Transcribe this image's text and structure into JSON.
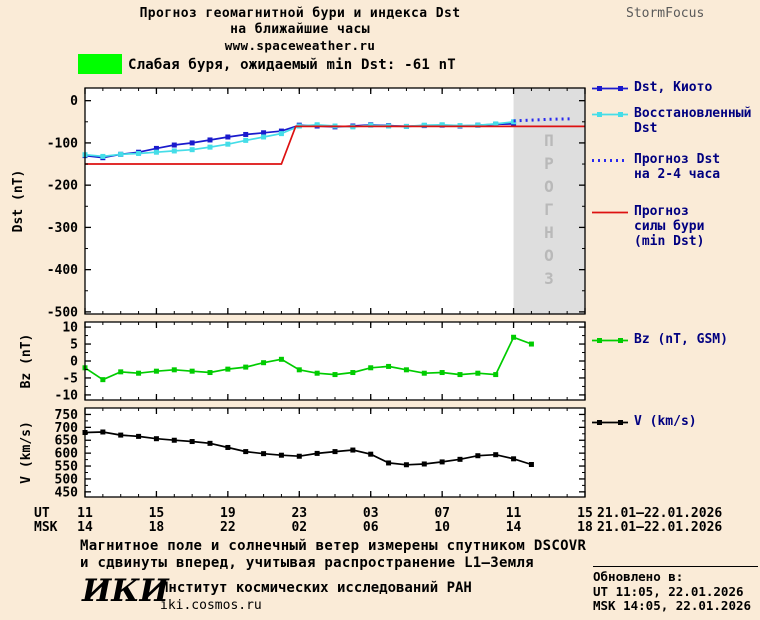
{
  "header": {
    "title_line1": "Прогноз геомагнитной бури и индекса Dst",
    "title_line2": "на ближайшие часы",
    "website": "www.spaceweather.ru",
    "brand": "StormFocus"
  },
  "alert": {
    "label": "Слабая буря, ожидаемый min Dst: -61 nT",
    "color": "#00ff00"
  },
  "colors": {
    "background": "#faebd7",
    "forecast_region": "#dedede",
    "watermark": "#b9b9b9",
    "axis": "#000000",
    "legend_text": "#000080"
  },
  "xaxis": {
    "ut_label": "UT",
    "msk_label": "MSK",
    "ut_ticks": [
      "11",
      "15",
      "19",
      "23",
      "03",
      "07",
      "11",
      "15"
    ],
    "msk_ticks": [
      "14",
      "18",
      "22",
      "02",
      "06",
      "10",
      "14",
      "18"
    ],
    "ut_date": "21.01—22.01.2026",
    "msk_date": "21.01—22.01.2026"
  },
  "legend_main": [
    {
      "label": "Dst, Киото"
    },
    {
      "label": "Восстановленный\nDst"
    },
    {
      "label": "Прогноз Dst\nна 2-4 часа"
    },
    {
      "label": "Прогноз\nсилы бури\n(min Dst)"
    }
  ],
  "legend_bz": {
    "label": "Bz (nT, GSM)"
  },
  "legend_v": {
    "label": "V (km/s)"
  },
  "note": {
    "line1": "Магнитное поле и солнечный ветер измерены спутником DSCOVR",
    "line2": "и сдвинуты вперед, учитывая распространение L1—Земля"
  },
  "footer": {
    "logo": "ИКИ",
    "institute": "Институт космических исследований РАН",
    "site": "iki.cosmos.ru"
  },
  "updated": {
    "heading": "Обновлено в:",
    "ut": "UT  11:05, 22.01.2026",
    "msk": "MSK 14:05, 22.01.2026"
  },
  "chart_data": [
    {
      "type": "line",
      "title": "Прогноз геомагнитной бури и индекса Dst",
      "ylabel": "Dst (nT)",
      "ylim": [
        30,
        -505
      ],
      "yticks": [
        0,
        -100,
        -200,
        -300,
        -400,
        -500
      ],
      "xlim": [
        0,
        28
      ],
      "xticks_hours": [
        0,
        4,
        8,
        12,
        16,
        20,
        24,
        28
      ],
      "forecast_region_hours": [
        24,
        28
      ],
      "watermark": "ПРОГНОЗ",
      "series": [
        {
          "name": "Dst, Киото",
          "color": "#1a1acd",
          "marker": "square",
          "x": [
            0,
            1,
            2,
            3,
            4,
            5,
            6,
            7,
            8,
            9,
            10,
            11,
            12,
            13,
            14,
            15,
            16,
            17,
            18,
            19,
            20,
            21,
            22,
            23,
            24
          ],
          "values": [
            -130,
            -135,
            -127,
            -122,
            -113,
            -105,
            -100,
            -93,
            -86,
            -80,
            -76,
            -72,
            -58,
            -60,
            -62,
            -60,
            -57,
            -59,
            -61,
            -59,
            -58,
            -60,
            -58,
            -56,
            -55
          ]
        },
        {
          "name": "Восстановленный Dst",
          "color": "#45dde8",
          "marker": "square",
          "x": [
            0,
            1,
            2,
            3,
            4,
            5,
            6,
            7,
            8,
            9,
            10,
            11,
            12,
            13,
            14,
            15,
            16,
            17,
            18,
            19,
            20,
            21,
            22,
            23,
            24
          ],
          "values": [
            -128,
            -132,
            -127,
            -125,
            -122,
            -119,
            -116,
            -110,
            -103,
            -94,
            -86,
            -78,
            -60,
            -57,
            -60,
            -62,
            -58,
            -60,
            -61,
            -58,
            -57,
            -59,
            -58,
            -55,
            -50
          ]
        },
        {
          "name": "Прогноз Dst на 2-4 часа",
          "color": "#2a2aee",
          "style": "dotted",
          "marker": "none",
          "x": [
            24,
            25,
            26,
            27.3
          ],
          "values": [
            -48,
            -46,
            -44,
            -43
          ]
        },
        {
          "name": "Прогноз силы бури (min Dst)",
          "color": "#dd1111",
          "marker": "none",
          "x": [
            0,
            11,
            11.8,
            28
          ],
          "values": [
            -150,
            -150,
            -61,
            -61
          ]
        }
      ]
    },
    {
      "type": "line",
      "title": "Bz",
      "ylabel": "Bz (nT)",
      "ylim": [
        11.5,
        -11.5
      ],
      "yticks": [
        10,
        5,
        0,
        -5,
        -10
      ],
      "xlim": [
        0,
        28
      ],
      "series": [
        {
          "name": "Bz (nT, GSM)",
          "color": "#00cc00",
          "marker": "square",
          "x": [
            0,
            1,
            2,
            3,
            4,
            5,
            6,
            7,
            8,
            9,
            10,
            11,
            12,
            13,
            14,
            15,
            16,
            17,
            18,
            19,
            20,
            21,
            22,
            23,
            24,
            25
          ],
          "values": [
            -2,
            -5.5,
            -3.2,
            -3.6,
            -3,
            -2.6,
            -3,
            -3.4,
            -2.4,
            -1.8,
            -0.5,
            0.5,
            -2.6,
            -3.6,
            -4,
            -3.4,
            -2,
            -1.6,
            -2.6,
            -3.6,
            -3.4,
            -4,
            -3.6,
            -4,
            7,
            5
          ]
        }
      ]
    },
    {
      "type": "line",
      "title": "Скорость солнечного ветра",
      "ylabel": "V (km/s)",
      "ylim": [
        775,
        430
      ],
      "yticks": [
        750,
        700,
        650,
        600,
        550,
        500,
        450
      ],
      "xlim": [
        0,
        28
      ],
      "series": [
        {
          "name": "V (km/s)",
          "color": "#000000",
          "marker": "square",
          "x": [
            0,
            1,
            2,
            3,
            4,
            5,
            6,
            7,
            8,
            9,
            10,
            11,
            12,
            13,
            14,
            15,
            16,
            17,
            18,
            19,
            20,
            21,
            22,
            23,
            24,
            25
          ],
          "values": [
            680,
            682,
            670,
            665,
            656,
            650,
            645,
            638,
            622,
            606,
            598,
            592,
            588,
            599,
            606,
            612,
            596,
            562,
            555,
            558,
            566,
            576,
            590,
            594,
            578,
            556
          ]
        }
      ]
    }
  ]
}
